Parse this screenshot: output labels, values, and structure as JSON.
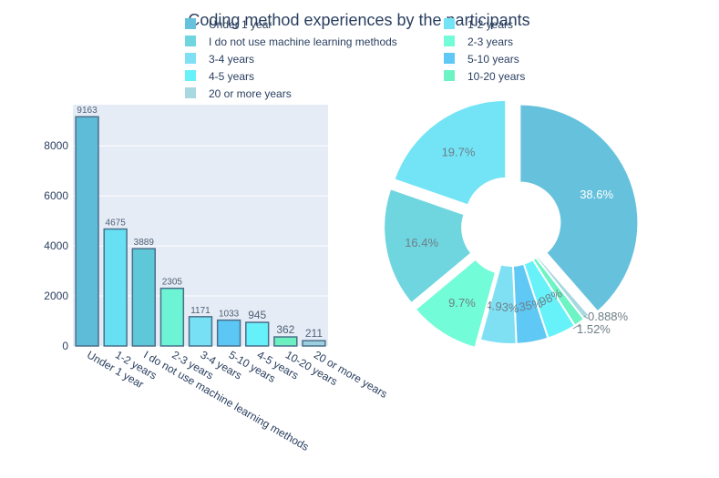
{
  "title": "Coding method experiences by the participants",
  "colors": {
    "plot_bg": "#e5ecf6",
    "grid": "#ffffff",
    "text": "#2a3f5f",
    "bar_stroke": "#4a6f8a"
  },
  "legend": {
    "placement": "top",
    "entries": [
      {
        "label": "Under 1 year",
        "color": "#66c2dc"
      },
      {
        "label": "1-2 years",
        "color": "#72e4f6"
      },
      {
        "label": "I do not use machine learning methods",
        "color": "#6fd6e0"
      },
      {
        "label": "2-3 years",
        "color": "#72fcd8"
      },
      {
        "label": "3-4 years",
        "color": "#7fe0f4"
      },
      {
        "label": "5-10 years",
        "color": "#5fc8f4"
      },
      {
        "label": "4-5 years",
        "color": "#67f2fa"
      },
      {
        "label": "10-20 years",
        "color": "#6cf4c4"
      },
      {
        "label": "20 or more years",
        "color": "#a8d8e0"
      }
    ]
  },
  "chart_data": [
    {
      "type": "bar",
      "categories": [
        "Under 1 year",
        "1-2 years",
        "I do not use machine learning methods",
        "2-3 years",
        "3-4 years",
        "5-10 years",
        "4-5 years",
        "10-20 years",
        "20 or more years"
      ],
      "values": [
        9163,
        4675,
        3889,
        2305,
        1171,
        1033,
        945,
        362,
        211
      ],
      "value_labels": [
        "9163",
        "4675",
        "3889",
        "2305",
        "1171",
        "1033",
        "945",
        "362",
        "211"
      ],
      "colors": [
        "#5fbcd8",
        "#67e0f4",
        "#5ec8d8",
        "#6cf4d4",
        "#78e0f4",
        "#5cc6f4",
        "#66f0fa",
        "#6cf0c0",
        "#9cd0e0"
      ],
      "yticks": [
        0,
        2000,
        4000,
        6000,
        8000
      ],
      "ylim": [
        0,
        9645
      ],
      "grid": true
    },
    {
      "type": "pie",
      "hole": true,
      "labels": [
        "Under 1 year",
        "20 or more years",
        "10-20 years",
        "4-5 years",
        "5-10 years",
        "3-4 years",
        "2-3 years",
        "I do not use machine learning methods",
        "1-2 years"
      ],
      "values": [
        38.6,
        0.888,
        1.52,
        3.98,
        4.35,
        4.93,
        9.7,
        16.4,
        19.7
      ],
      "value_labels": [
        "38.6%",
        "0.888%",
        "1.52%",
        "3.98%",
        "4.35%",
        "4.93%",
        "9.7%",
        "16.4%",
        "19.7%"
      ],
      "colors": [
        "#66c2dc",
        "#a8d8e0",
        "#6cf4c4",
        "#67f2fa",
        "#5fc8f4",
        "#7fe0f4",
        "#72fcd8",
        "#6fd6e0",
        "#72e4f6"
      ],
      "pulled": [
        true,
        false,
        false,
        false,
        false,
        false,
        true,
        true,
        true
      ],
      "label_inside": [
        true,
        false,
        false,
        true,
        true,
        true,
        true,
        true,
        true
      ]
    }
  ]
}
